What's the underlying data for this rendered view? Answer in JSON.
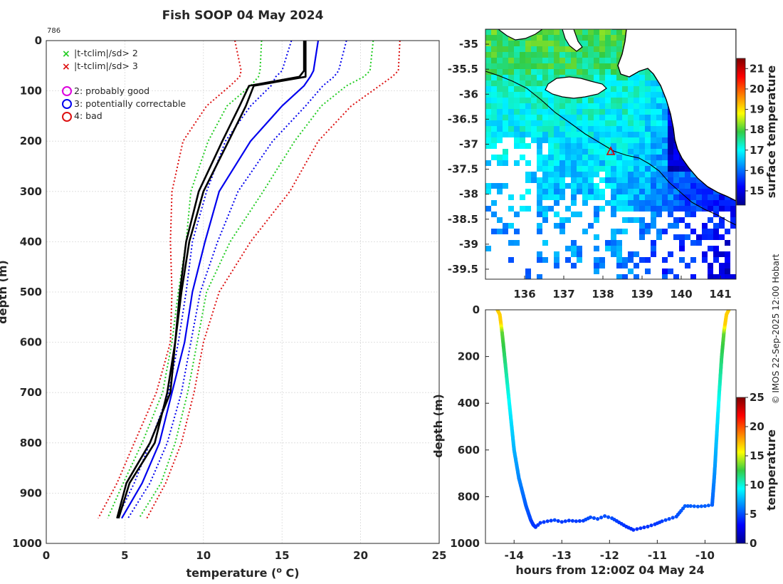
{
  "title": "Fish SOOP 04 May 2024",
  "profile_id": "786",
  "credit": "© IMOS 22-Sep-2025 12:00 Hobart",
  "colors": {
    "profile": "#000000",
    "qc_blue": "#0000ee",
    "sd2_green": "#22cc22",
    "sd3_red": "#dd1111",
    "legend_magenta": "#dd00dd",
    "land": "#ffffff",
    "track_marker": "#dd0000"
  },
  "legend": {
    "items": [
      {
        "symbol": "x",
        "color": "#22cc22",
        "label": "|t-tclim|/sd> 2"
      },
      {
        "symbol": "x",
        "color": "#dd1111",
        "label": "|t-tclim|/sd> 3"
      },
      {
        "symbol": "o",
        "color": "#dd00dd",
        "label": "2: probably good"
      },
      {
        "symbol": "o",
        "color": "#0000ee",
        "label": "3: potentially correctable"
      },
      {
        "symbol": "o",
        "color": "#dd1111",
        "label": "4: bad"
      }
    ]
  },
  "chart_data": [
    {
      "type": "line",
      "name": "temperature-profile",
      "xlabel": "temperature (o C)",
      "xlabel_base": "temperature (",
      "xlabel_sup": "o",
      "xlabel_end": " C)",
      "ylabel": "depth (m)",
      "xlim": [
        0,
        25
      ],
      "ylim": [
        1000,
        0
      ],
      "xticks": [
        "0",
        "5",
        "10",
        "15",
        "20",
        "25"
      ],
      "yticks": [
        "0",
        "100",
        "200",
        "300",
        "400",
        "500",
        "600",
        "700",
        "800",
        "900",
        "1000"
      ],
      "grid": true,
      "y": [
        0,
        60,
        72,
        90,
        130,
        200,
        300,
        400,
        500,
        600,
        700,
        800,
        880,
        950
      ],
      "series": [
        {
          "name": "clim -3sd",
          "style": "dotted",
          "color": "#dd1111",
          "values": [
            12.0,
            12.4,
            12.3,
            11.7,
            10.2,
            8.7,
            8.0,
            7.9,
            8.0,
            7.9,
            7.0,
            5.6,
            4.5,
            3.3
          ]
        },
        {
          "name": "clim -2sd",
          "style": "dotted",
          "color": "#22cc22",
          "values": [
            13.7,
            13.6,
            13.5,
            13.0,
            11.5,
            10.3,
            9.2,
            8.9,
            8.4,
            8.0,
            7.4,
            6.1,
            4.9,
            3.9
          ]
        },
        {
          "name": "clim -1sd",
          "style": "dotted",
          "color": "#0000ee",
          "values": [
            15.6,
            15.0,
            14.6,
            14.3,
            13.0,
            11.4,
            10.2,
            9.3,
            8.9,
            8.4,
            7.8,
            6.6,
            5.6,
            4.5
          ]
        },
        {
          "name": "profile A",
          "style": "solid",
          "color": "#000000",
          "width": 2.6,
          "values": [
            16.5,
            16.5,
            16.5,
            13.2,
            12.7,
            11.6,
            10.0,
            9.1,
            8.6,
            8.2,
            7.7,
            6.9,
            5.3,
            4.6
          ]
        },
        {
          "name": "profile B",
          "style": "solid",
          "color": "#000000",
          "width": 2.6,
          "values": [
            16.4,
            16.4,
            16.1,
            12.9,
            12.3,
            11.2,
            9.7,
            8.9,
            8.5,
            8.2,
            7.9,
            6.6,
            5.1,
            4.5
          ]
        },
        {
          "name": "climatology",
          "style": "solid",
          "color": "#0000ee",
          "width": 2.2,
          "values": [
            17.3,
            17.0,
            16.8,
            16.4,
            15.0,
            13.0,
            11.0,
            10.1,
            9.3,
            8.8,
            8.0,
            7.2,
            6.1,
            4.8
          ]
        },
        {
          "name": "clim +1sd",
          "style": "dotted",
          "color": "#0000ee",
          "values": [
            19.1,
            18.6,
            18.3,
            17.6,
            16.5,
            14.4,
            12.2,
            10.9,
            9.8,
            9.2,
            8.6,
            7.7,
            6.6,
            5.2
          ]
        },
        {
          "name": "clim +2sd",
          "style": "dotted",
          "color": "#22cc22",
          "values": [
            20.8,
            20.6,
            20.2,
            19.1,
            17.5,
            15.8,
            13.8,
            11.7,
            10.2,
            9.6,
            9.0,
            8.2,
            7.3,
            5.9
          ]
        },
        {
          "name": "clim +3sd",
          "style": "dotted",
          "color": "#dd1111",
          "values": [
            22.5,
            22.4,
            22.0,
            21.2,
            19.4,
            17.3,
            15.5,
            13.0,
            11.0,
            10.0,
            9.4,
            8.6,
            7.6,
            6.4
          ]
        }
      ]
    },
    {
      "type": "heatmap",
      "name": "sst-map",
      "colorbar_label": "surface temperature",
      "xticks": [
        "136",
        "137",
        "138",
        "139",
        "140",
        "141"
      ],
      "yticks": [
        "-35",
        "-35.5",
        "-36",
        "-36.5",
        "-37",
        "-37.5",
        "-38",
        "-38.5",
        "-39",
        "-39.5"
      ],
      "xlim": [
        135.0,
        141.4
      ],
      "ylim": [
        -39.7,
        -34.7
      ],
      "clim": [
        14.3,
        21.5
      ],
      "colorbar_ticks": [
        "15",
        "16",
        "17",
        "18",
        "19",
        "20",
        "21"
      ],
      "marker": {
        "lon": 138.2,
        "lat": -37.15
      }
    },
    {
      "type": "scatter",
      "name": "track-depth",
      "xlabel": "hours from 12:00Z 04 May 24",
      "ylabel": "depth (m)",
      "colorbar_label": "temperature",
      "xlim": [
        -14.6,
        -9.35
      ],
      "ylim": [
        1000,
        0
      ],
      "xticks": [
        "-14",
        "-13",
        "-12",
        "-11",
        "-10"
      ],
      "yticks": [
        "0",
        "200",
        "400",
        "600",
        "800",
        "1000"
      ],
      "colorbar_ticks": [
        "0",
        "5",
        "10",
        "15",
        "20",
        "25"
      ],
      "clim": [
        0,
        25
      ],
      "descent": {
        "hours": [
          -14.35,
          -14.3,
          -14.25,
          -14.2,
          -14.15,
          -14.1,
          -14.05,
          -14.0,
          -13.95,
          -13.9,
          -13.85,
          -13.8,
          -13.75,
          -13.7,
          -13.65,
          -13.6,
          -13.55
        ],
        "depth": [
          0,
          20,
          100,
          200,
          300,
          400,
          500,
          600,
          660,
          720,
          760,
          800,
          840,
          870,
          900,
          920,
          930
        ]
      },
      "bottom": {
        "hours": [
          -13.55,
          -13.45,
          -13.3,
          -13.15,
          -13.0,
          -12.85,
          -12.7,
          -12.55,
          -12.4,
          -12.25,
          -12.1,
          -11.95,
          -11.8,
          -11.65,
          -11.5,
          -11.35,
          -11.2,
          -11.05,
          -10.9,
          -10.75,
          -10.6,
          -10.5,
          -10.42,
          -10.3,
          -10.15,
          -10.0,
          -9.85
        ],
        "depth": [
          930,
          912,
          905,
          900,
          908,
          902,
          905,
          903,
          888,
          895,
          883,
          892,
          910,
          928,
          942,
          935,
          928,
          918,
          905,
          895,
          885,
          860,
          840,
          840,
          842,
          840,
          835
        ]
      },
      "ascent": {
        "hours": [
          -9.85,
          -9.8,
          -9.75,
          -9.7,
          -9.65,
          -9.6,
          -9.55,
          -9.5
        ],
        "depth": [
          835,
          700,
          520,
          350,
          200,
          90,
          20,
          0
        ]
      }
    }
  ]
}
